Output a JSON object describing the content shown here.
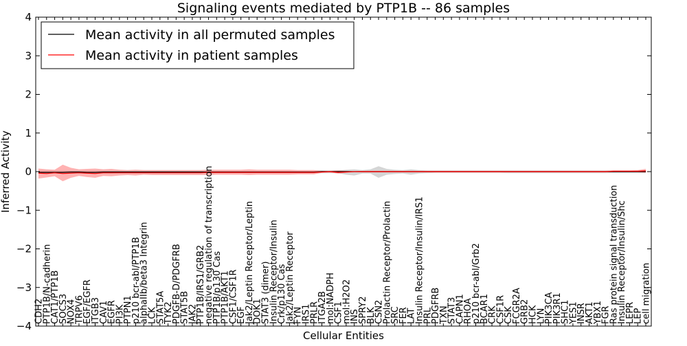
{
  "chart_data": {
    "type": "line",
    "title": "Signaling events mediated by PTP1B -- 86 samples",
    "xlabel": "Cellular Entities",
    "ylabel": "Inferred Activity",
    "ylim": [
      -4,
      4
    ],
    "yticks": [
      -4,
      -3,
      -2,
      -1,
      0,
      1,
      2,
      3,
      4
    ],
    "ytick_labels": [
      "−4",
      "−3",
      "−2",
      "−1",
      "0",
      "1",
      "2",
      "3",
      "4"
    ],
    "legend_position": "top-left",
    "categories": [
      "CDH2",
      "PTP1B/N-cadherin",
      "CAT1/PTP1B",
      "SOCS3",
      "NOX4",
      "TRPV6",
      "EGF/EGFR",
      "ITGB3",
      "CAV1",
      "EGFR",
      "PI3K",
      "PTPN1",
      "p210 bcr-abl/PTP1B",
      "alphaIIb/beta3 Integrin",
      "LCK",
      "STAT5A",
      "TYK2",
      "PDGFB-D/PDGFRB",
      "STAT5B",
      "JAK2",
      "PTP1B/IRS1/GRB2",
      "negative regulation of transcription",
      "PTP1B/p130 Cas",
      "PTP1B/AKT1",
      "CSF1/CSF1R",
      "EGF",
      "Jak2/Leptin Receptor/Leptin",
      "DOK1",
      "STAT3 (dimer)",
      "Insulin Receptor/Insulin",
      "Crk/p130 Cas",
      "Jak2/Leptin Receptor",
      "FYN",
      "IRS1",
      "PRLR",
      "ITGA2B",
      "mol:NADPH",
      "CSF1",
      "mol:H2O2",
      "INS",
      "SPRY2",
      "BLK",
      "CSN2",
      "Prolactin Receptor/Prolactin",
      "SRC",
      "FER",
      "LAT",
      "Insulin Receptor/Insulin/IRS1",
      "PRL",
      "PDGFRB",
      "TXN",
      "STAT3",
      "CAPN1",
      "RHOA",
      "p210 bcr-abl/Grb2",
      "BCAR1",
      "CRK",
      "CSF1R",
      "CSK",
      "FCGR2A",
      "GRB2",
      "HCK",
      "LYN",
      "PIK3CA",
      "PIK3R1",
      "SHC1",
      "YES1",
      "INSR",
      "AKT1",
      "YBX1",
      "FGR",
      "Ras protein signal transduction",
      "Insulin Receptor/Insulin/Shc",
      "LEPR",
      "LEP",
      "cell migration"
    ],
    "series": [
      {
        "name": "Mean activity in all permuted samples",
        "color": "#000000",
        "values": [
          -0.02,
          -0.02,
          -0.02,
          -0.02,
          -0.01,
          -0.01,
          -0.02,
          -0.02,
          -0.01,
          -0.01,
          -0.01,
          -0.01,
          -0.01,
          -0.01,
          -0.01,
          -0.01,
          -0.01,
          -0.01,
          -0.01,
          -0.01,
          -0.01,
          -0.01,
          -0.01,
          -0.01,
          -0.01,
          -0.01,
          -0.01,
          -0.01,
          -0.01,
          -0.01,
          -0.01,
          -0.01,
          -0.01,
          -0.01,
          -0.01,
          0.0,
          0.0,
          0.0,
          0.0,
          0.0,
          0.0,
          0.0,
          0.0,
          0.0,
          0.0,
          0.0,
          0.0,
          0.0,
          0.0,
          0.0,
          0.0,
          0.0,
          0.0,
          0.0,
          0.0,
          0.0,
          0.0,
          0.0,
          0.0,
          0.0,
          0.0,
          0.0,
          0.0,
          0.0,
          0.0,
          0.0,
          0.0,
          0.0,
          0.0,
          0.0,
          0.0,
          0.0,
          0.0,
          0.0,
          0.0,
          0.0
        ],
        "band_lower": [
          -0.05,
          -0.05,
          -0.05,
          -0.05,
          -0.05,
          -0.05,
          -0.05,
          -0.05,
          -0.05,
          -0.05,
          -0.04,
          -0.04,
          -0.04,
          -0.04,
          -0.04,
          -0.04,
          -0.04,
          -0.04,
          -0.04,
          -0.04,
          -0.04,
          -0.04,
          -0.04,
          -0.04,
          -0.04,
          -0.04,
          -0.04,
          -0.04,
          -0.04,
          -0.04,
          -0.04,
          -0.04,
          -0.04,
          -0.04,
          -0.04,
          -0.04,
          -0.04,
          -0.04,
          -0.08,
          -0.1,
          -0.05,
          -0.05,
          -0.16,
          -0.08,
          -0.06,
          -0.05,
          -0.08,
          -0.05,
          -0.04,
          -0.03,
          -0.03,
          -0.03,
          -0.03,
          -0.03,
          -0.03,
          -0.03,
          -0.03,
          -0.03,
          -0.04,
          -0.04,
          -0.04,
          -0.04,
          -0.04,
          -0.04,
          -0.04,
          -0.04,
          -0.04,
          -0.04,
          -0.04,
          -0.04,
          -0.04,
          -0.03,
          -0.03,
          -0.03,
          -0.03,
          -0.03
        ],
        "band_upper": [
          0.02,
          0.02,
          0.02,
          0.02,
          0.02,
          0.02,
          0.02,
          0.02,
          0.02,
          0.02,
          0.02,
          0.02,
          0.02,
          0.02,
          0.02,
          0.02,
          0.02,
          0.02,
          0.02,
          0.02,
          0.02,
          0.02,
          0.02,
          0.02,
          0.02,
          0.02,
          0.02,
          0.02,
          0.02,
          0.02,
          0.02,
          0.02,
          0.02,
          0.02,
          0.02,
          0.03,
          0.03,
          0.03,
          0.05,
          0.06,
          0.04,
          0.06,
          0.14,
          0.07,
          0.05,
          0.04,
          0.06,
          0.04,
          0.03,
          0.03,
          0.03,
          0.03,
          0.03,
          0.03,
          0.03,
          0.03,
          0.03,
          0.03,
          0.03,
          0.03,
          0.03,
          0.03,
          0.03,
          0.03,
          0.03,
          0.03,
          0.03,
          0.03,
          0.03,
          0.03,
          0.03,
          0.03,
          0.03,
          0.03,
          0.03,
          0.03
        ]
      },
      {
        "name": "Mean activity in patient samples",
        "color": "#ff0000",
        "values": [
          -0.04,
          -0.05,
          -0.03,
          -0.05,
          -0.04,
          -0.03,
          -0.04,
          -0.05,
          -0.03,
          -0.03,
          -0.03,
          -0.03,
          -0.03,
          -0.03,
          -0.03,
          -0.03,
          -0.03,
          -0.03,
          -0.03,
          -0.03,
          -0.03,
          -0.02,
          -0.02,
          -0.02,
          -0.02,
          -0.02,
          -0.02,
          -0.02,
          -0.02,
          -0.02,
          -0.02,
          -0.02,
          -0.02,
          -0.02,
          -0.02,
          -0.01,
          0.0,
          -0.02,
          -0.01,
          0.0,
          0.0,
          0.0,
          0.0,
          0.0,
          0.0,
          0.0,
          0.0,
          0.0,
          0.0,
          0.0,
          0.0,
          0.0,
          0.0,
          0.0,
          0.0,
          0.0,
          0.0,
          0.0,
          0.0,
          0.0,
          0.0,
          0.0,
          0.0,
          0.0,
          0.0,
          0.0,
          0.0,
          0.0,
          0.0,
          0.0,
          0.0,
          0.01,
          0.01,
          0.01,
          0.01,
          0.02
        ],
        "band_lower": [
          -0.18,
          -0.15,
          -0.12,
          -0.25,
          -0.16,
          -0.11,
          -0.14,
          -0.16,
          -0.11,
          -0.12,
          -0.1,
          -0.09,
          -0.1,
          -0.08,
          -0.09,
          -0.09,
          -0.09,
          -0.09,
          -0.09,
          -0.09,
          -0.09,
          -0.09,
          -0.08,
          -0.08,
          -0.08,
          -0.08,
          -0.09,
          -0.08,
          -0.08,
          -0.08,
          -0.08,
          -0.08,
          -0.07,
          -0.07,
          -0.07,
          -0.03,
          -0.02,
          -0.05,
          -0.03,
          -0.01,
          -0.02,
          -0.02,
          -0.02,
          -0.02,
          -0.02,
          -0.02,
          -0.02,
          -0.02,
          -0.02,
          -0.02,
          -0.02,
          -0.02,
          -0.02,
          -0.02,
          -0.02,
          -0.02,
          -0.02,
          -0.02,
          -0.02,
          -0.02,
          -0.02,
          -0.02,
          -0.02,
          -0.02,
          -0.02,
          -0.02,
          -0.02,
          -0.02,
          -0.02,
          -0.02,
          -0.02,
          -0.02,
          -0.02,
          -0.02,
          -0.02,
          -0.03
        ],
        "band_upper": [
          0.08,
          0.06,
          0.05,
          0.18,
          0.1,
          0.06,
          0.07,
          0.08,
          0.06,
          0.07,
          0.05,
          0.04,
          0.05,
          0.04,
          0.04,
          0.04,
          0.04,
          0.04,
          0.04,
          0.04,
          0.04,
          0.05,
          0.05,
          0.05,
          0.05,
          0.05,
          0.06,
          0.05,
          0.05,
          0.05,
          0.05,
          0.05,
          0.04,
          0.04,
          0.04,
          0.02,
          0.02,
          0.03,
          0.02,
          0.01,
          0.02,
          0.02,
          0.02,
          0.02,
          0.02,
          0.02,
          0.02,
          0.02,
          0.02,
          0.02,
          0.02,
          0.02,
          0.02,
          0.02,
          0.02,
          0.02,
          0.02,
          0.02,
          0.02,
          0.02,
          0.02,
          0.02,
          0.02,
          0.02,
          0.02,
          0.02,
          0.02,
          0.02,
          0.02,
          0.02,
          0.02,
          0.03,
          0.03,
          0.03,
          0.04,
          0.07
        ]
      }
    ]
  }
}
